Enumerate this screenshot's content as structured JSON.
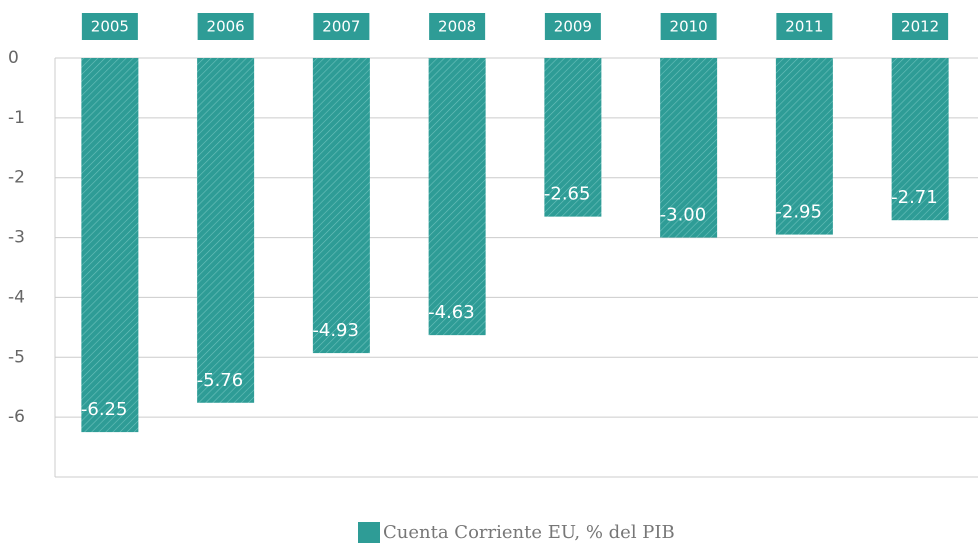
{
  "chart_data": {
    "type": "bar",
    "categories": [
      "2005",
      "2006",
      "2007",
      "2008",
      "2009",
      "2010",
      "2011",
      "2012"
    ],
    "series": [
      {
        "name": "Cuenta Corriente EU, % del PIB",
        "color": "#2e9c96",
        "values": [
          -6.25,
          -5.76,
          -4.93,
          -4.63,
          -2.65,
          -3.0,
          -2.95,
          -2.71
        ],
        "value_labels": [
          "-6.25",
          "-5.76",
          "-4.93",
          "-4.63",
          "-2.65",
          "-3.00",
          "-2.95",
          "-2.71"
        ]
      }
    ],
    "ylim": [
      -7,
      0
    ],
    "yticks": [
      0,
      -1,
      -2,
      -3,
      -4,
      -5,
      -6
    ],
    "grid": true,
    "legend": "bottom"
  }
}
